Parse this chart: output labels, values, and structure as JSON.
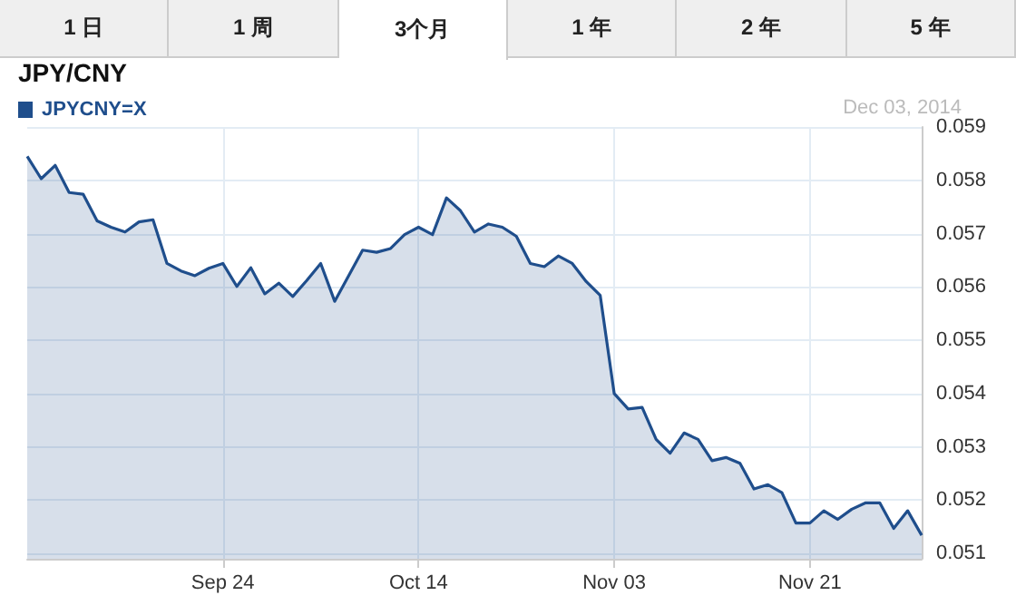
{
  "chart_data": {
    "type": "area",
    "title": "JPY/CNY",
    "annotations": [
      "Dec 03, 2014",
      "1 日",
      "1 周",
      "3个月",
      "1 年",
      "2 年",
      "5 年"
    ],
    "categories": [
      null,
      null,
      null,
      null,
      null,
      null,
      null,
      null,
      null,
      null,
      null,
      null,
      null,
      null,
      "Sep 24",
      null,
      null,
      null,
      null,
      null,
      null,
      null,
      null,
      null,
      null,
      null,
      null,
      null,
      "Oct 14",
      null,
      null,
      null,
      null,
      null,
      null,
      null,
      null,
      null,
      null,
      null,
      null,
      null,
      "Nov 03",
      null,
      null,
      null,
      null,
      null,
      null,
      null,
      null,
      null,
      null,
      null,
      null,
      null,
      "Nov 21",
      null,
      null,
      null,
      null,
      null,
      null,
      null,
      null
    ],
    "series": [
      {
        "name": "JPYCNY=X",
        "color": "#1f4e8c",
        "values": [
          0.05845,
          0.05803,
          0.05828,
          0.05777,
          0.05774,
          0.05724,
          0.05712,
          0.05703,
          0.05722,
          0.05726,
          0.05644,
          0.0563,
          0.05621,
          0.05635,
          0.05644,
          0.05601,
          0.05636,
          0.05587,
          0.05607,
          0.05582,
          0.05612,
          0.05644,
          0.05573,
          0.05621,
          0.05669,
          0.05665,
          0.05672,
          0.05698,
          0.05712,
          0.05698,
          0.05767,
          0.05743,
          0.05703,
          0.05718,
          0.05712,
          0.05695,
          0.05644,
          0.05638,
          0.05658,
          0.05644,
          0.0561,
          0.05584,
          0.054,
          0.05371,
          0.05374,
          0.05314,
          0.05288,
          0.05326,
          0.05314,
          0.05274,
          0.0528,
          0.05269,
          0.05221,
          0.05229,
          0.05214,
          0.05157,
          0.05157,
          0.0518,
          0.05164,
          0.05183,
          0.05195,
          0.05195,
          0.05147,
          0.0518,
          0.05134
        ]
      }
    ],
    "ylim": [
      0.0509,
      0.059
    ],
    "yticks": [
      0.051,
      0.052,
      0.053,
      0.054,
      0.055,
      0.056,
      0.057,
      0.058,
      0.059
    ],
    "grid": true,
    "legend": "top left",
    "marker": "none",
    "line_style": "solid"
  }
}
